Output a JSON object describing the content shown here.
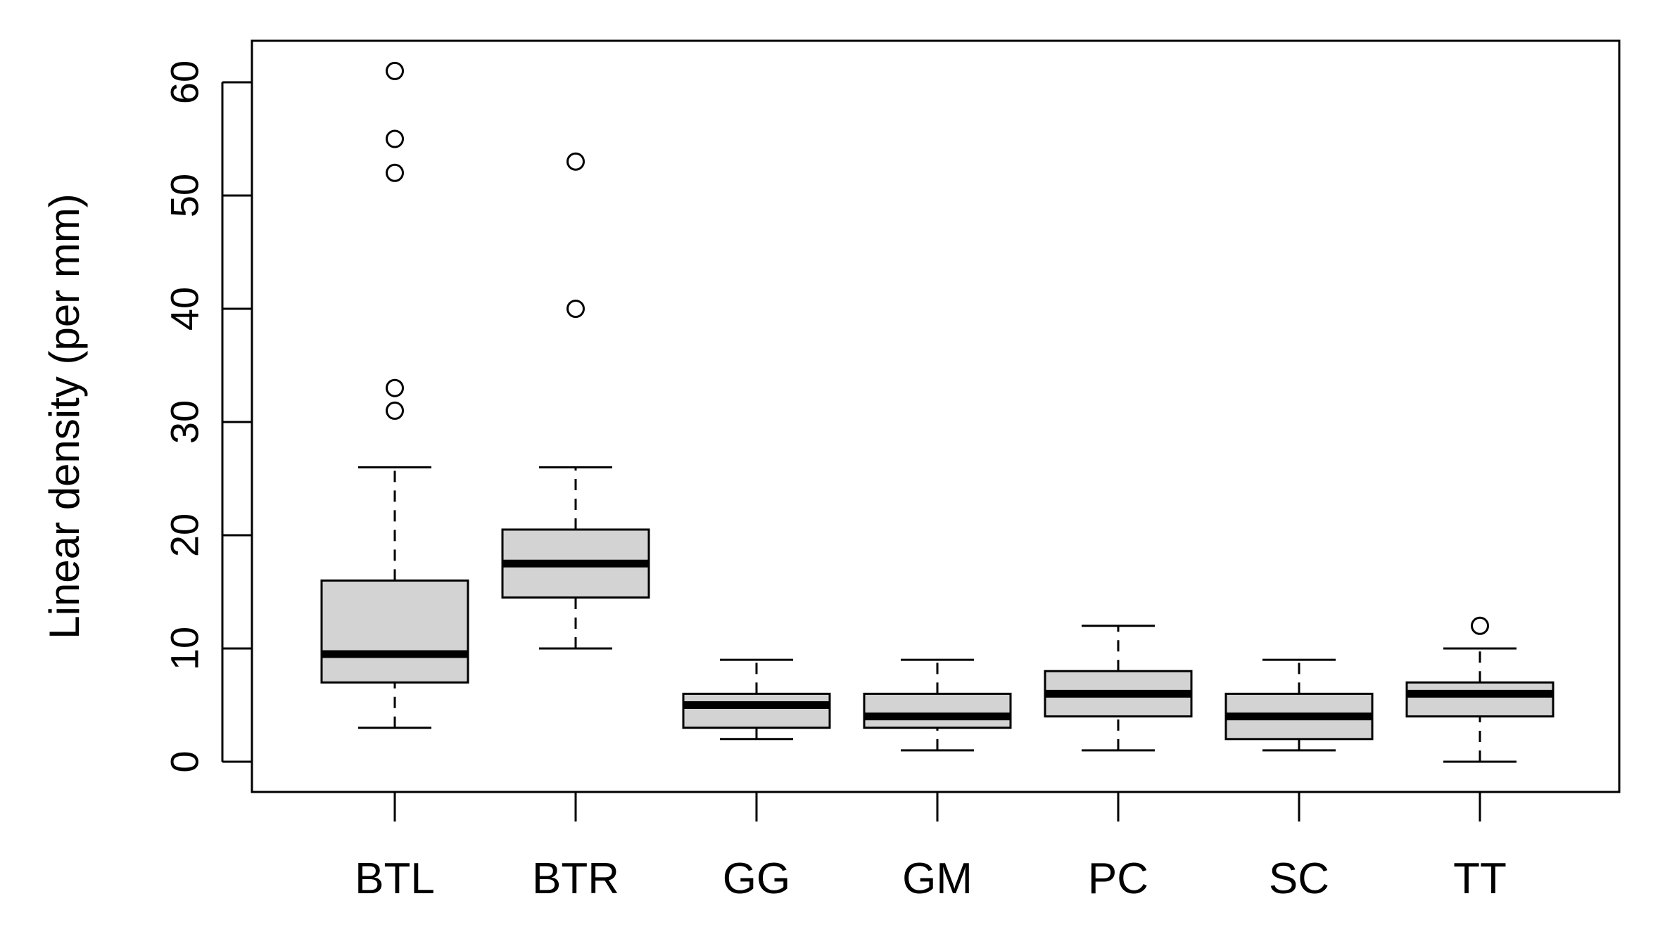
{
  "chart_data": {
    "type": "boxplot",
    "title": "",
    "xlabel": "",
    "ylabel": "Linear density (per mm)",
    "ylim": [
      -2.6,
      63.8
    ],
    "yticks": [
      0,
      10,
      20,
      30,
      40,
      50,
      60
    ],
    "categories": [
      "BTL",
      "BTR",
      "GG",
      "GM",
      "PC",
      "SC",
      "TT"
    ],
    "boxes": [
      {
        "label": "BTL",
        "whisker_low": 3,
        "q1": 7,
        "median": 9.5,
        "q3": 16,
        "whisker_high": 26,
        "outliers": [
          31,
          33,
          52,
          55,
          61
        ]
      },
      {
        "label": "BTR",
        "whisker_low": 10,
        "q1": 14.5,
        "median": 17.5,
        "q3": 20.5,
        "whisker_high": 26,
        "outliers": [
          40,
          53
        ]
      },
      {
        "label": "GG",
        "whisker_low": 2,
        "q1": 3,
        "median": 5,
        "q3": 6,
        "whisker_high": 9,
        "outliers": []
      },
      {
        "label": "GM",
        "whisker_low": 1,
        "q1": 3,
        "median": 4,
        "q3": 6,
        "whisker_high": 9,
        "outliers": []
      },
      {
        "label": "PC",
        "whisker_low": 1,
        "q1": 4,
        "median": 6,
        "q3": 8,
        "whisker_high": 12,
        "outliers": []
      },
      {
        "label": "SC",
        "whisker_low": 1,
        "q1": 2,
        "median": 4,
        "q3": 6,
        "whisker_high": 9,
        "outliers": []
      },
      {
        "label": "TT",
        "whisker_low": 0,
        "q1": 4,
        "median": 6,
        "q3": 7,
        "whisker_high": 10,
        "outliers": [
          12
        ]
      }
    ],
    "colors": {
      "box_fill": "#d3d3d3",
      "stroke": "#000000",
      "background": "#ffffff"
    }
  }
}
